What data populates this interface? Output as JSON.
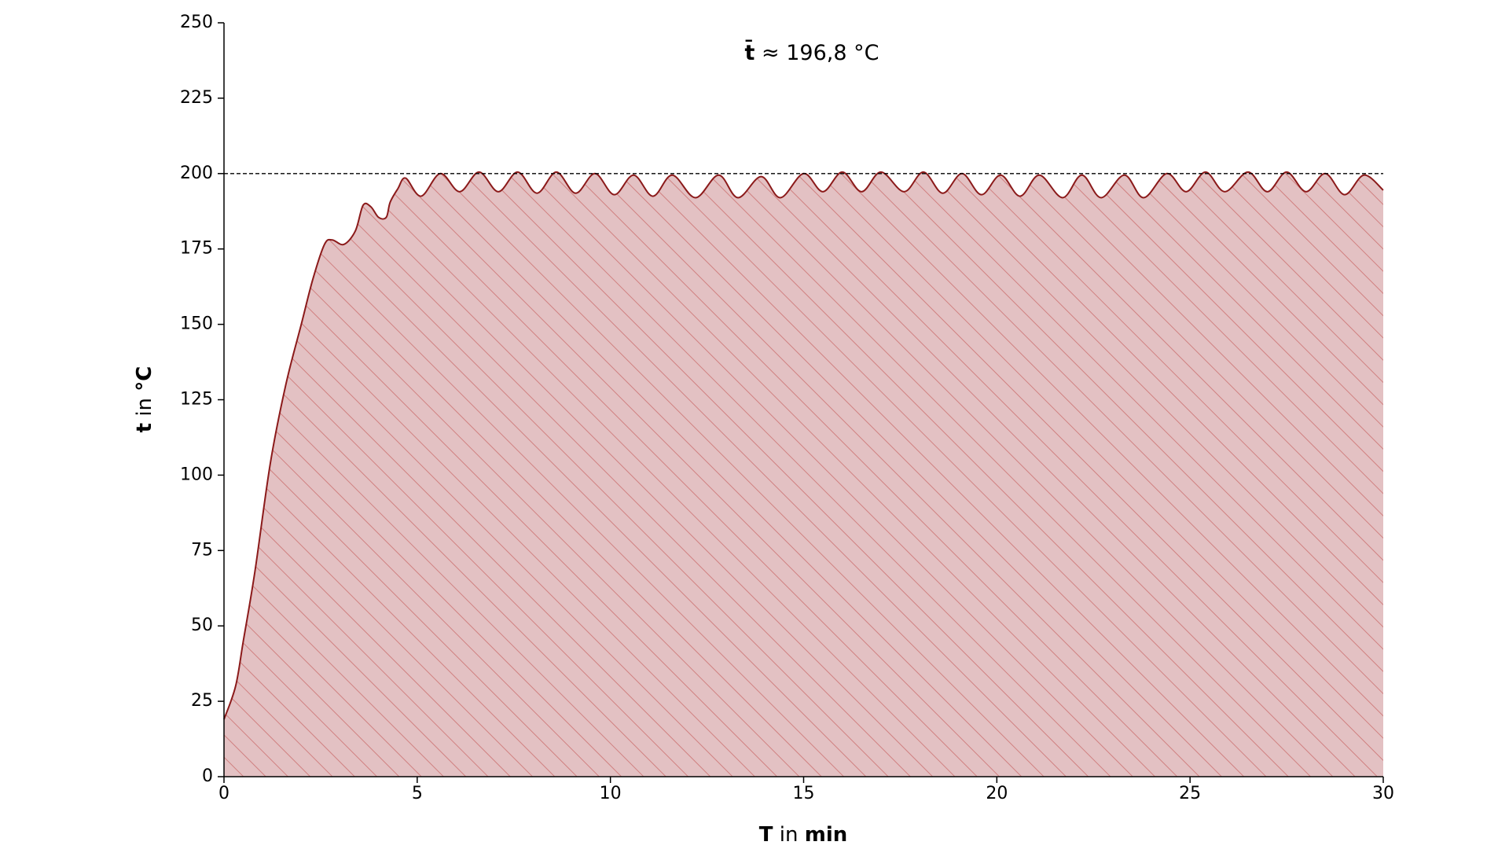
{
  "chart_data": {
    "type": "area",
    "annotation": {
      "symbol": "t̄",
      "text": "≈ 196,8 °C"
    },
    "xlabel": [
      "T",
      "in",
      "min"
    ],
    "ylabel": [
      "t",
      "in",
      "°C"
    ],
    "reference_line": 200,
    "color": "#8b1a1a",
    "fill_color": "#e3c1c3",
    "hatch_color": "#d08080",
    "x": [
      0,
      0.3,
      0.5,
      0.8,
      1.2,
      1.6,
      2,
      2.3,
      2.6,
      2.8,
      3.1,
      3.4,
      3.6,
      3.8,
      4,
      4.2,
      4.3,
      4.5,
      4.7,
      5.1,
      5.6,
      6.1,
      6.6,
      7.1,
      7.6,
      8.1,
      8.6,
      9.1,
      9.6,
      10.1,
      10.6,
      11.1,
      11.6,
      12.2,
      12.8,
      13.3,
      13.9,
      14.4,
      15,
      15.5,
      16,
      16.5,
      17,
      17.6,
      18.1,
      18.6,
      19.1,
      19.6,
      20.1,
      20.6,
      21.1,
      21.7,
      22.2,
      22.7,
      23.3,
      23.8,
      24.4,
      24.9,
      25.4,
      25.9,
      26.5,
      27,
      27.5,
      28,
      28.5,
      29,
      29.5,
      30
    ],
    "values": [
      19,
      30,
      45,
      68,
      104,
      130,
      150,
      165,
      176.5,
      178,
      176.5,
      181,
      189.5,
      189,
      185.5,
      185.5,
      190.5,
      195,
      198.5,
      192.5,
      200,
      194,
      200.5,
      194,
      200.5,
      193.5,
      200.5,
      193.5,
      200,
      193,
      199.5,
      192.5,
      199.5,
      192,
      199.5,
      192,
      199,
      192,
      200,
      194,
      200.5,
      194,
      200.5,
      194,
      200.5,
      193.5,
      200,
      193,
      199.5,
      192.5,
      199.5,
      192,
      199.5,
      192,
      199.5,
      192,
      200,
      194,
      200.5,
      194,
      200.5,
      194,
      200.5,
      194,
      200,
      193,
      199.5,
      194.5
    ],
    "xlim": [
      0,
      30
    ],
    "xticks": [
      0,
      5,
      10,
      15,
      20,
      25,
      30
    ],
    "ylim": [
      0,
      250
    ],
    "yticks": [
      0,
      25,
      50,
      75,
      100,
      125,
      150,
      175,
      200,
      225,
      250
    ]
  }
}
